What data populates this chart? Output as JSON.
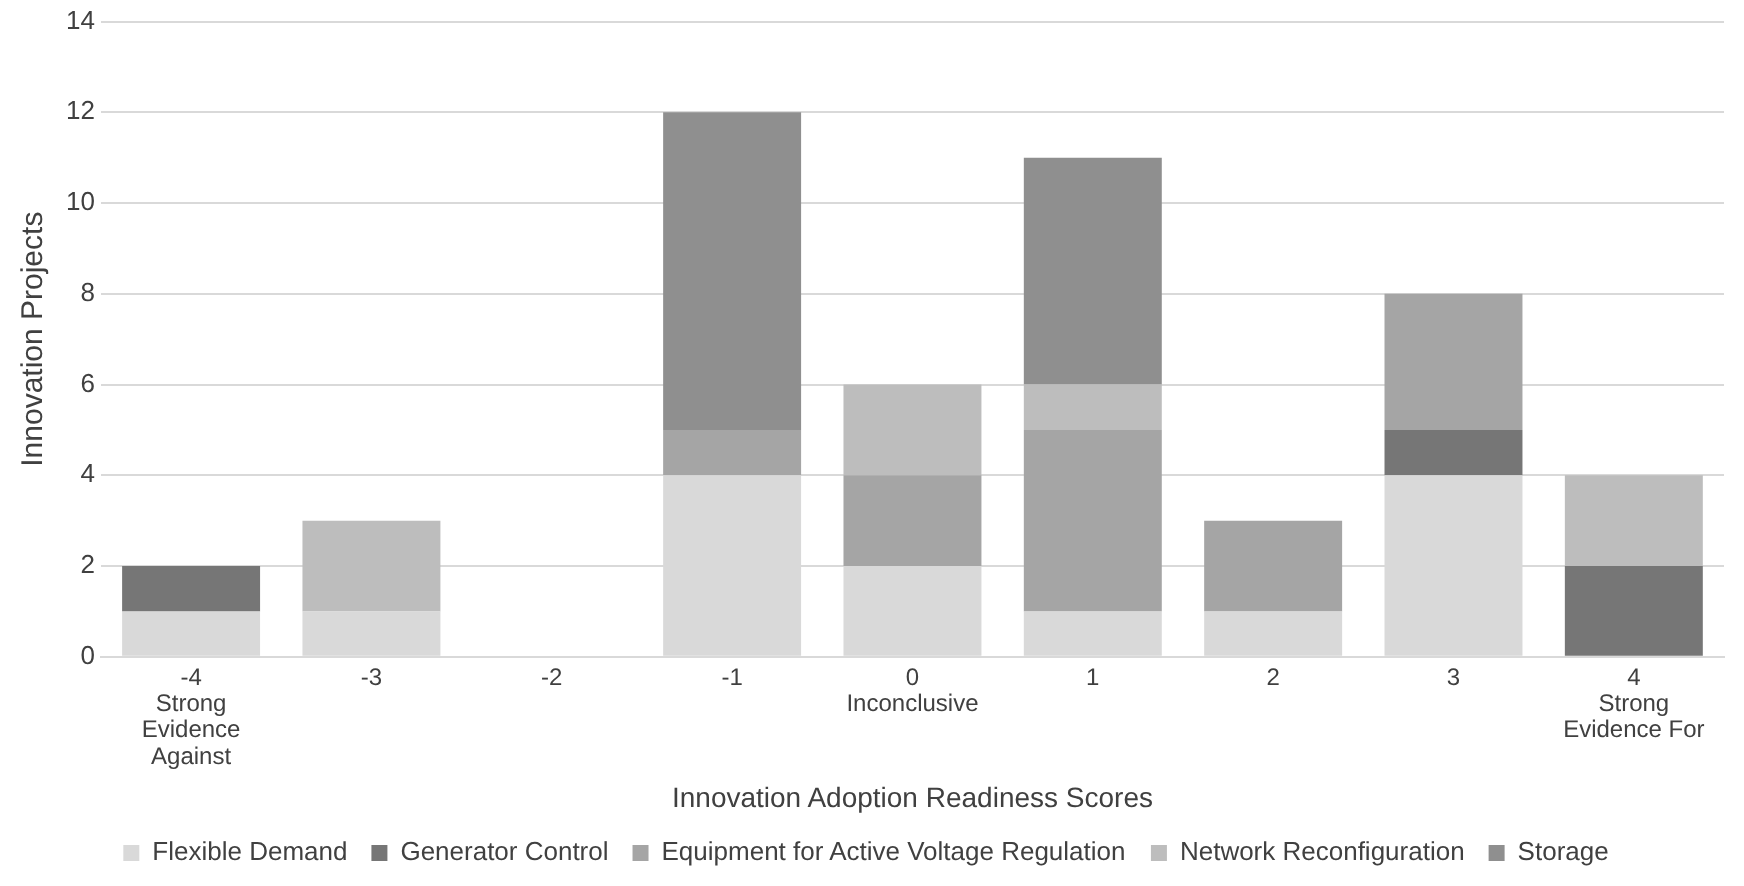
{
  "chart_data": {
    "type": "bar",
    "stacked": true,
    "categories": [
      "-4\nStrong\nEvidence\nAgainst",
      "-3",
      "-2",
      "-1",
      "0\nInconclusive",
      "1",
      "2",
      "3",
      "4\nStrong\nEvidence For"
    ],
    "xlabel": "Innovation Adoption Readiness Scores",
    "ylabel": "Innovation Projects",
    "ylim": [
      0,
      14
    ],
    "yticks": [
      0,
      2,
      4,
      6,
      8,
      10,
      12,
      14
    ],
    "grid": "y",
    "legend": "bottom",
    "series": [
      {
        "name": "Flexible Demand",
        "color": "#d9d9d9",
        "values": [
          1,
          1,
          null,
          4,
          2,
          1,
          1,
          4,
          null
        ]
      },
      {
        "name": "Generator Control",
        "color": "#767676",
        "values": [
          1,
          null,
          null,
          null,
          null,
          null,
          null,
          1,
          2
        ]
      },
      {
        "name": "Equipment for Active Voltage Regulation",
        "color": "#a5a5a5",
        "values": [
          null,
          null,
          null,
          1,
          2,
          4,
          2,
          3,
          null
        ]
      },
      {
        "name": "Network Reconfiguration",
        "color": "#bdbdbd",
        "values": [
          null,
          2,
          null,
          null,
          2,
          1,
          null,
          null,
          2
        ]
      },
      {
        "name": "Storage",
        "color": "#8f8f8f",
        "values": [
          null,
          null,
          null,
          7,
          null,
          5,
          null,
          null,
          null
        ]
      }
    ]
  }
}
